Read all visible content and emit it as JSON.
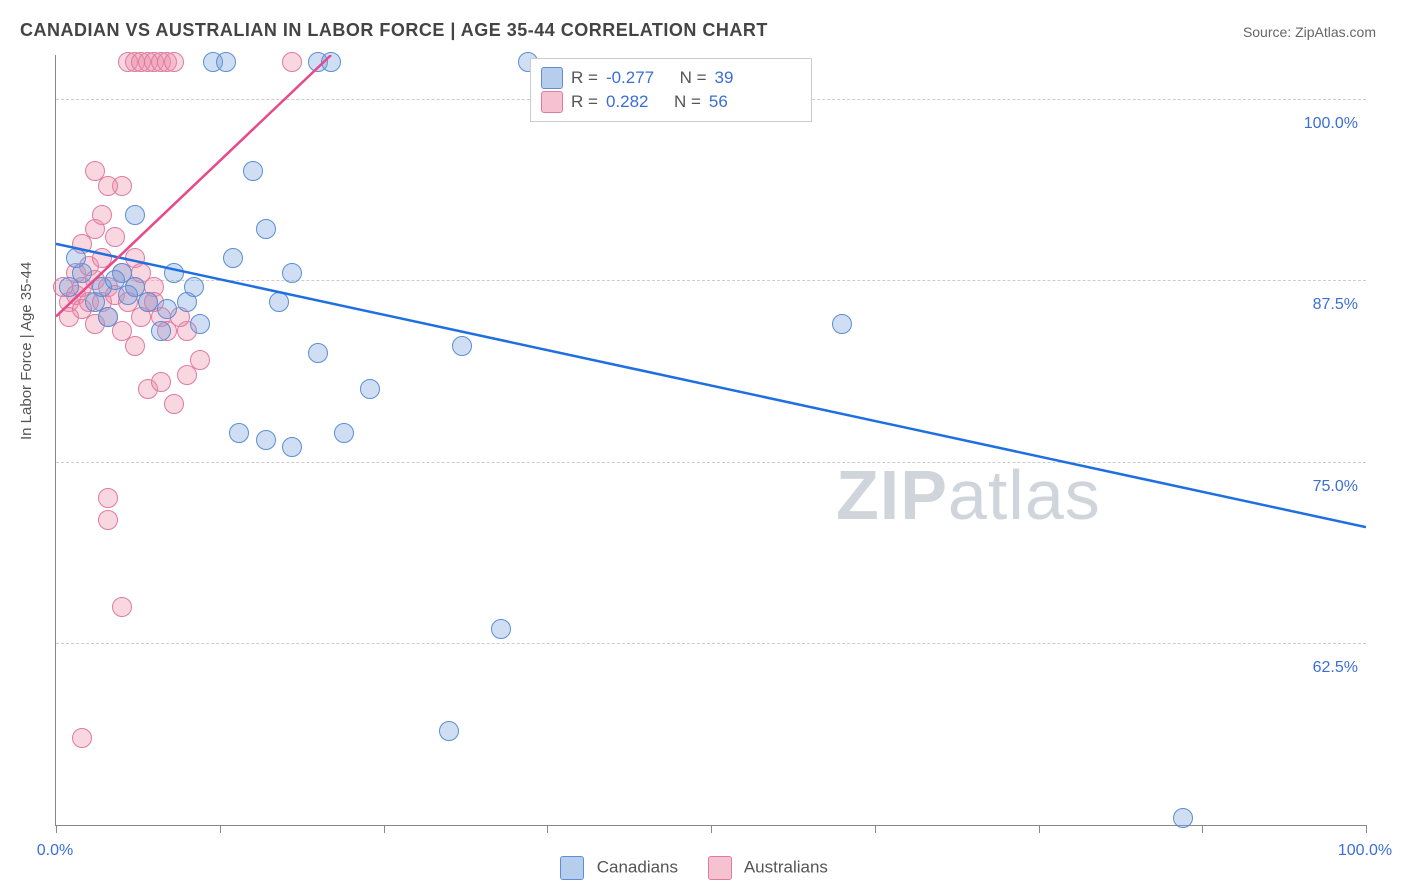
{
  "title": "CANADIAN VS AUSTRALIAN IN LABOR FORCE | AGE 35-44 CORRELATION CHART",
  "source": "Source: ZipAtlas.com",
  "watermark_bold": "ZIP",
  "watermark_light": "atlas",
  "ylabel": "In Labor Force | Age 35-44",
  "chart": {
    "type": "scatter-with-regression",
    "background_color": "#ffffff",
    "grid_color": "#cccccc",
    "axis_color": "#888888",
    "xlim": [
      0,
      100
    ],
    "ylim": [
      50,
      103
    ],
    "x_ticks": [
      0,
      12.5,
      25,
      37.5,
      50,
      62.5,
      75,
      87.5,
      100
    ],
    "x_tick_labels_shown": {
      "0": "0.0%",
      "100": "100.0%"
    },
    "y_grid": [
      62.5,
      75,
      87.5,
      100
    ],
    "y_tick_labels": {
      "62.5": "62.5%",
      "75": "75.0%",
      "87.5": "87.5%",
      "100": "100.0%"
    },
    "tick_label_color": "#3b6fd6",
    "tick_label_fontsize": 16,
    "title_fontsize": 18,
    "title_color": "#444444",
    "ylabel_fontsize": 15,
    "ylabel_color": "#555555",
    "marker_radius": 10,
    "marker_stroke_width": 1.5,
    "trend_line_width": 2.5,
    "series": {
      "canadians": {
        "label": "Canadians",
        "fill": "rgba(120,160,220,0.35)",
        "stroke": "#5b8fd6",
        "swatch_fill": "#b7cdee",
        "swatch_stroke": "#5b8fd6",
        "R": "-0.277",
        "N": "39",
        "trend": {
          "x1": 0,
          "y1": 90,
          "x2": 100,
          "y2": 70.5,
          "color": "#1f6fe0"
        },
        "points": [
          [
            1,
            87
          ],
          [
            2,
            88
          ],
          [
            3,
            86
          ],
          [
            3.5,
            87
          ],
          [
            4,
            85
          ],
          [
            5,
            88
          ],
          [
            6,
            87
          ],
          [
            6,
            92
          ],
          [
            7,
            86
          ],
          [
            8,
            84
          ],
          [
            9,
            88
          ],
          [
            10,
            86
          ],
          [
            11,
            84.5
          ],
          [
            12,
            102.5
          ],
          [
            13,
            102.5
          ],
          [
            15,
            95
          ],
          [
            16,
            91
          ],
          [
            18,
            88
          ],
          [
            20,
            82.5
          ],
          [
            20,
            102.5
          ],
          [
            21,
            102.5
          ],
          [
            24,
            80
          ],
          [
            22,
            77
          ],
          [
            14,
            77
          ],
          [
            16,
            76.5
          ],
          [
            18,
            76
          ],
          [
            34,
            63.5
          ],
          [
            30,
            56.5
          ],
          [
            31,
            83
          ],
          [
            36,
            102.5
          ],
          [
            60,
            84.5
          ],
          [
            86,
            50.5
          ],
          [
            1.5,
            89
          ],
          [
            4.5,
            87.5
          ],
          [
            5.5,
            86.5
          ],
          [
            8.5,
            85.5
          ],
          [
            10.5,
            87
          ],
          [
            13.5,
            89
          ],
          [
            17,
            86
          ]
        ]
      },
      "australians": {
        "label": "Australians",
        "fill": "rgba(235,140,170,0.35)",
        "stroke": "#e07ba0",
        "swatch_fill": "#f6c2d2",
        "swatch_stroke": "#e07ba0",
        "R": "0.282",
        "N": "56",
        "trend": {
          "x1": 0,
          "y1": 85,
          "x2": 21,
          "y2": 103,
          "color": "#e64a8a"
        },
        "points": [
          [
            0.5,
            87
          ],
          [
            1,
            86
          ],
          [
            1,
            85
          ],
          [
            1.5,
            88
          ],
          [
            1.5,
            86.5
          ],
          [
            2,
            87
          ],
          [
            2,
            85.5
          ],
          [
            2.5,
            86
          ],
          [
            2.5,
            88.5
          ],
          [
            3,
            87.5
          ],
          [
            3,
            84.5
          ],
          [
            3.5,
            86
          ],
          [
            3.5,
            89
          ],
          [
            4,
            87
          ],
          [
            4,
            85
          ],
          [
            4.5,
            86.5
          ],
          [
            5,
            88
          ],
          [
            5,
            84
          ],
          [
            5,
            94
          ],
          [
            5.5,
            86
          ],
          [
            6,
            87
          ],
          [
            6,
            83
          ],
          [
            6.5,
            85
          ],
          [
            7,
            86
          ],
          [
            7,
            80
          ],
          [
            7.5,
            87
          ],
          [
            8,
            85
          ],
          [
            8,
            80.5
          ],
          [
            8.5,
            84
          ],
          [
            9,
            79
          ],
          [
            10,
            81
          ],
          [
            10,
            84
          ],
          [
            11,
            82
          ],
          [
            4,
            72.5
          ],
          [
            4,
            71
          ],
          [
            5,
            65
          ],
          [
            2,
            56
          ],
          [
            3,
            95
          ],
          [
            4,
            94
          ],
          [
            5.5,
            102.5
          ],
          [
            6,
            102.5
          ],
          [
            6.5,
            102.5
          ],
          [
            7,
            102.5
          ],
          [
            7.5,
            102.5
          ],
          [
            8,
            102.5
          ],
          [
            8.5,
            102.5
          ],
          [
            9,
            102.5
          ],
          [
            18,
            102.5
          ],
          [
            2,
            90
          ],
          [
            3,
            91
          ],
          [
            3.5,
            92
          ],
          [
            4.5,
            90.5
          ],
          [
            6,
            89
          ],
          [
            6.5,
            88
          ],
          [
            7.5,
            86
          ],
          [
            9.5,
            85
          ]
        ]
      }
    }
  },
  "stat_legend": {
    "r_label": "R =",
    "n_label": "N =",
    "value_color": "#3b6fd6"
  }
}
